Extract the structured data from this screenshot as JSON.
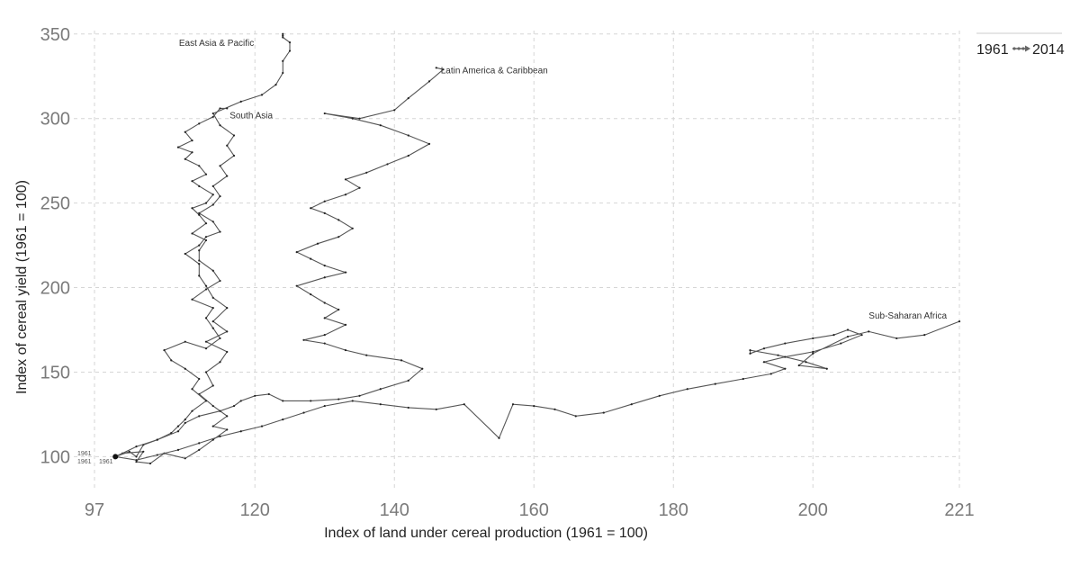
{
  "chart_data": {
    "type": "line",
    "subtype": "connected-scatter",
    "title": "",
    "xlabel": "Index of land under cereal production (1961 = 100)",
    "ylabel": "Index of cereal yield (1961 = 100)",
    "xlim": [
      97,
      221
    ],
    "ylim": [
      80,
      352
    ],
    "x_ticks": [
      97,
      120,
      140,
      160,
      180,
      200,
      221
    ],
    "y_ticks": [
      100,
      150,
      200,
      250,
      300,
      350
    ],
    "grid": true,
    "legend": {
      "position": "top-right",
      "start": "1961",
      "end": "2014"
    },
    "start_labels": [
      "1961",
      "1961",
      "1961"
    ],
    "series": [
      {
        "name": "East Asia & Pacific",
        "points": [
          [
            100,
            100
          ],
          [
            101,
            102
          ],
          [
            104,
            103
          ],
          [
            103,
            97
          ],
          [
            105,
            96
          ],
          [
            107,
            102
          ],
          [
            110,
            99
          ],
          [
            112,
            104
          ],
          [
            114,
            110
          ],
          [
            116,
            116
          ],
          [
            114,
            118
          ],
          [
            116,
            124
          ],
          [
            114,
            130
          ],
          [
            112,
            137
          ],
          [
            114,
            142
          ],
          [
            113,
            150
          ],
          [
            115,
            156
          ],
          [
            116,
            162
          ],
          [
            113,
            168
          ],
          [
            116,
            174
          ],
          [
            114,
            180
          ],
          [
            116,
            188
          ],
          [
            114,
            194
          ],
          [
            113,
            201
          ],
          [
            112,
            207
          ],
          [
            112,
            214
          ],
          [
            110,
            220
          ],
          [
            112,
            225
          ],
          [
            113,
            230
          ],
          [
            115,
            233
          ],
          [
            114,
            239
          ],
          [
            112,
            244
          ],
          [
            114,
            249
          ],
          [
            115,
            254
          ],
          [
            114,
            260
          ],
          [
            116,
            266
          ],
          [
            115,
            272
          ],
          [
            117,
            278
          ],
          [
            116,
            284
          ],
          [
            117,
            290
          ],
          [
            115,
            296
          ],
          [
            114,
            303
          ],
          [
            118,
            310
          ],
          [
            121,
            314
          ],
          [
            123,
            320
          ],
          [
            124,
            327
          ],
          [
            124,
            334
          ],
          [
            125,
            340
          ],
          [
            125,
            345
          ],
          [
            124,
            348
          ],
          [
            124,
            349
          ],
          [
            124,
            350
          ]
        ]
      },
      {
        "name": "South Asia",
        "points": [
          [
            100,
            100
          ],
          [
            102,
            103
          ],
          [
            103,
            100
          ],
          [
            104,
            107
          ],
          [
            106,
            110
          ],
          [
            108,
            114
          ],
          [
            109,
            118
          ],
          [
            110,
            122
          ],
          [
            111,
            127
          ],
          [
            113,
            133
          ],
          [
            111,
            140
          ],
          [
            112,
            146
          ],
          [
            110,
            152
          ],
          [
            108,
            157
          ],
          [
            107,
            163
          ],
          [
            110,
            168
          ],
          [
            113,
            164
          ],
          [
            115,
            170
          ],
          [
            114,
            176
          ],
          [
            113,
            182
          ],
          [
            114,
            188
          ],
          [
            111,
            193
          ],
          [
            113,
            199
          ],
          [
            115,
            204
          ],
          [
            114,
            210
          ],
          [
            112,
            216
          ],
          [
            112,
            222
          ],
          [
            113,
            228
          ],
          [
            111,
            232
          ],
          [
            113,
            238
          ],
          [
            112,
            243
          ],
          [
            111,
            247
          ],
          [
            113,
            250
          ],
          [
            114,
            255
          ],
          [
            112,
            260
          ],
          [
            111,
            263
          ],
          [
            113,
            267
          ],
          [
            112,
            272
          ],
          [
            110,
            276
          ],
          [
            111,
            280
          ],
          [
            109,
            283
          ],
          [
            111,
            287
          ],
          [
            110,
            292
          ],
          [
            112,
            297
          ],
          [
            114,
            301
          ],
          [
            115,
            306
          ],
          [
            116,
            306
          ]
        ]
      },
      {
        "name": "Latin America & Caribbean",
        "points": [
          [
            100,
            100
          ],
          [
            103,
            106
          ],
          [
            106,
            110
          ],
          [
            109,
            115
          ],
          [
            110,
            120
          ],
          [
            112,
            124
          ],
          [
            115,
            127
          ],
          [
            117,
            130
          ],
          [
            118,
            133
          ],
          [
            120,
            136
          ],
          [
            122,
            137
          ],
          [
            124,
            133
          ],
          [
            128,
            133
          ],
          [
            132,
            134
          ],
          [
            135,
            136
          ],
          [
            138,
            140
          ],
          [
            142,
            145
          ],
          [
            144,
            152
          ],
          [
            141,
            157
          ],
          [
            136,
            160
          ],
          [
            133,
            163
          ],
          [
            130,
            167
          ],
          [
            127,
            169
          ],
          [
            130,
            172
          ],
          [
            133,
            178
          ],
          [
            130,
            182
          ],
          [
            132,
            187
          ],
          [
            130,
            191
          ],
          [
            128,
            196
          ],
          [
            126,
            201
          ],
          [
            130,
            206
          ],
          [
            133,
            209
          ],
          [
            130,
            213
          ],
          [
            128,
            217
          ],
          [
            126,
            221
          ],
          [
            129,
            226
          ],
          [
            132,
            230
          ],
          [
            134,
            235
          ],
          [
            132,
            240
          ],
          [
            130,
            244
          ],
          [
            128,
            247
          ],
          [
            130,
            251
          ],
          [
            133,
            255
          ],
          [
            135,
            259
          ],
          [
            133,
            264
          ],
          [
            136,
            268
          ],
          [
            139,
            273
          ],
          [
            142,
            278
          ],
          [
            145,
            285
          ],
          [
            142,
            290
          ],
          [
            138,
            296
          ],
          [
            134,
            300
          ],
          [
            130,
            303
          ],
          [
            135,
            300
          ],
          [
            140,
            305
          ],
          [
            142,
            312
          ],
          [
            145,
            322
          ],
          [
            147,
            329
          ],
          [
            146,
            330
          ]
        ]
      },
      {
        "name": "Sub-Saharan Africa",
        "points": [
          [
            100,
            100
          ],
          [
            103,
            98
          ],
          [
            106,
            101
          ],
          [
            109,
            104
          ],
          [
            112,
            108
          ],
          [
            115,
            112
          ],
          [
            118,
            115
          ],
          [
            121,
            118
          ],
          [
            124,
            122
          ],
          [
            127,
            126
          ],
          [
            130,
            130
          ],
          [
            134,
            133
          ],
          [
            138,
            131
          ],
          [
            142,
            129
          ],
          [
            146,
            128
          ],
          [
            150,
            131
          ],
          [
            155,
            111
          ],
          [
            157,
            131
          ],
          [
            160,
            130
          ],
          [
            163,
            128
          ],
          [
            166,
            124
          ],
          [
            170,
            126
          ],
          [
            174,
            131
          ],
          [
            178,
            136
          ],
          [
            182,
            140
          ],
          [
            186,
            143
          ],
          [
            190,
            146
          ],
          [
            194,
            149
          ],
          [
            196,
            152
          ],
          [
            193,
            156
          ],
          [
            196,
            159
          ],
          [
            200,
            162
          ],
          [
            204,
            167
          ],
          [
            207,
            172
          ],
          [
            205,
            175
          ],
          [
            203,
            172
          ],
          [
            200,
            170
          ],
          [
            196,
            167
          ],
          [
            193,
            164
          ],
          [
            191,
            161
          ],
          [
            191,
            163
          ],
          [
            195,
            160
          ],
          [
            199,
            156
          ],
          [
            202,
            152
          ],
          [
            198,
            154
          ],
          [
            200,
            161
          ],
          [
            205,
            171
          ],
          [
            208,
            174
          ],
          [
            212,
            170
          ],
          [
            216,
            172
          ],
          [
            221,
            180
          ]
        ]
      }
    ]
  }
}
